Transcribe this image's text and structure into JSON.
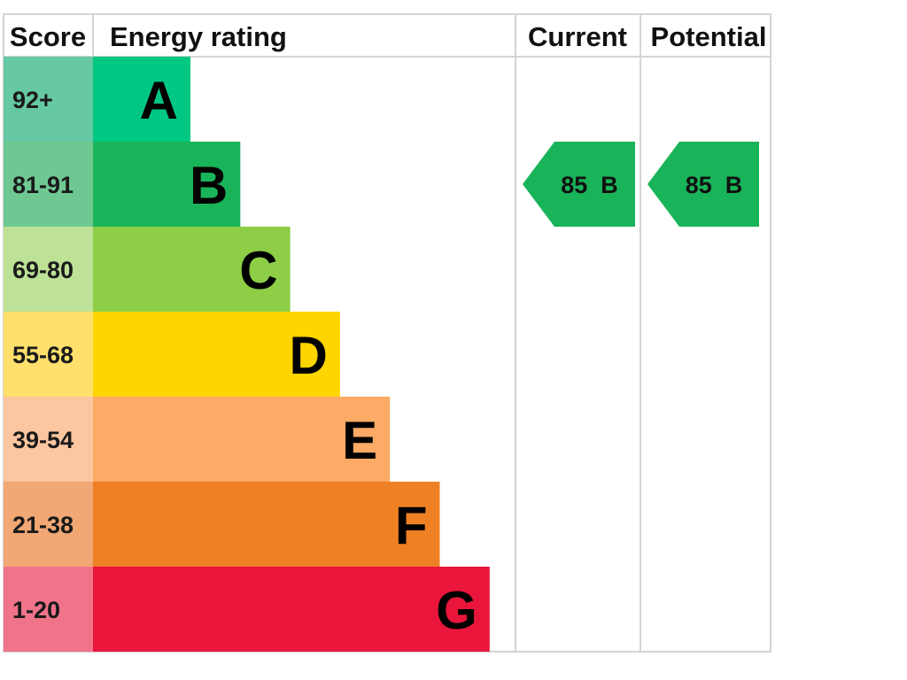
{
  "chart_data": {
    "type": "bar",
    "headers": {
      "score": "Score",
      "rating": "Energy rating",
      "current": "Current",
      "potential": "Potential"
    },
    "bands": [
      {
        "score": "92+",
        "letter": "A",
        "color": "#00c781",
        "score_color": "#66c9a4"
      },
      {
        "score": "81-91",
        "letter": "B",
        "color": "#19b459",
        "score_color": "#6fc892"
      },
      {
        "score": "69-80",
        "letter": "C",
        "color": "#8dce46",
        "score_color": "#bde196"
      },
      {
        "score": "55-68",
        "letter": "D",
        "color": "#ffd500",
        "score_color": "#ffe06c"
      },
      {
        "score": "39-54",
        "letter": "E",
        "color": "#fcaa65",
        "score_color": "#fcc6a0"
      },
      {
        "score": "21-38",
        "letter": "F",
        "color": "#ef8023",
        "score_color": "#f2a874"
      },
      {
        "score": "1-20",
        "letter": "G",
        "color": "#e9153b",
        "score_color": "#f0738a"
      }
    ],
    "current": {
      "value": 85,
      "letter": "B",
      "label": "85  B",
      "color": "#19b459"
    },
    "potential": {
      "value": 85,
      "letter": "B",
      "label": "85  B",
      "color": "#19b459"
    }
  }
}
